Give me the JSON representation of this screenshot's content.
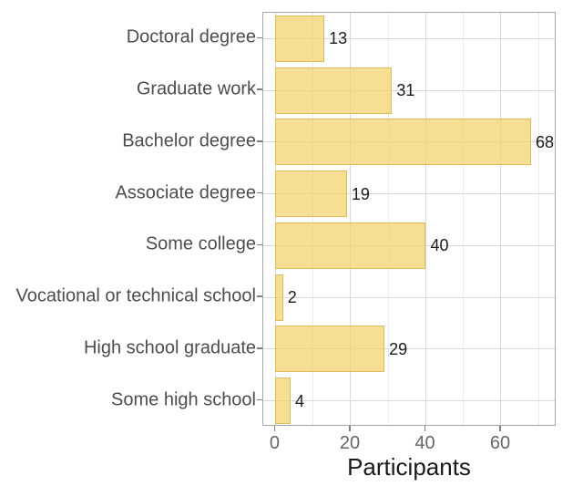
{
  "chart_data": {
    "type": "bar",
    "orientation": "horizontal",
    "title": "",
    "xlabel": "Participants",
    "ylabel": "",
    "categories": [
      "Doctoral degree",
      "Graduate work",
      "Bachelor degree",
      "Associate degree",
      "Some college",
      "Vocational or technical school",
      "High school graduate",
      "Some high school"
    ],
    "values": [
      13,
      31,
      68,
      19,
      40,
      2,
      29,
      4
    ],
    "value_labels": [
      "13",
      "31",
      "68",
      "19",
      "40",
      "2",
      "29",
      "4"
    ],
    "x_major_ticks": [
      0,
      20,
      40,
      60
    ],
    "x_minor_ticks": [
      10,
      30,
      50,
      70
    ],
    "xlim": [
      -3.27,
      74.8
    ],
    "grid": true,
    "legend": false,
    "colors": {
      "bar_fill": "rgba(243, 209, 104, 0.72)",
      "bar_border": "#dfbc5a",
      "grid_major": "#d9d9d9",
      "grid_minor": "#ececec",
      "panel_border": "#a6a6a6",
      "tick_mark": "#7f7f7f",
      "category_text": "#4d4d4d",
      "tick_text": "#666666",
      "value_text": "#1a1a1a",
      "axis_title_text": "#1a1a1a",
      "background": "#ffffff"
    }
  }
}
